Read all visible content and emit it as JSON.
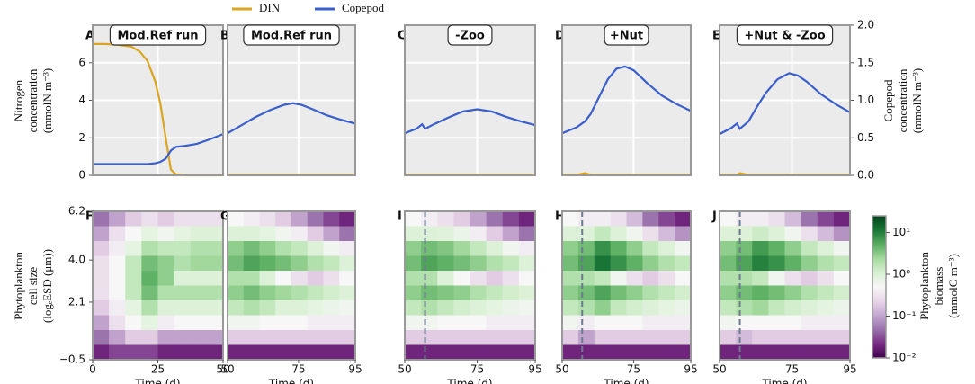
{
  "legend_labels": null,
  "labels": {
    "left_top": [
      "Nitrogen",
      "concentration",
      "(mmolN m⁻³)"
    ],
    "right_top": [
      "Copepod",
      "concentration",
      "(mmolN m⁻³)"
    ],
    "left_bottom": [
      "Phytoplankton",
      "cell size",
      "(logₑESD (μm))"
    ],
    "colorbar": [
      "Phytoplankton",
      "biomass",
      "(mmolC m⁻³)"
    ]
  },
  "colorbar": {
    "zlim": [
      0.01,
      25
    ],
    "log": true,
    "zticks": [
      {
        "value": 0.01,
        "label": "10⁻²"
      },
      {
        "value": 0.1,
        "label": "10⁻¹"
      },
      {
        "value": 1,
        "label": "10⁰"
      },
      {
        "value": 10,
        "label": "10¹"
      }
    ],
    "colormap": [
      "#40004b",
      "#762a83",
      "#9970ab",
      "#c2a5cf",
      "#e7d4e8",
      "#f7f7f7",
      "#d9f0d3",
      "#a6dba0",
      "#5aae61",
      "#1b7837",
      "#00441b"
    ]
  },
  "chart_data": [
    {
      "type": "line",
      "letter": "A",
      "title": "Mod.Ref run",
      "xlim": [
        0,
        50
      ],
      "ylim": [
        0,
        8
      ],
      "y2lim": [
        0,
        2
      ],
      "yticks": [
        0,
        2,
        4,
        6
      ],
      "grid": true,
      "x": [
        0,
        5,
        10,
        15,
        18,
        21,
        24,
        26,
        28,
        30,
        32,
        35,
        40,
        45,
        50
      ],
      "series": [
        {
          "name": "DIN",
          "color": "#daa520",
          "values": [
            7,
            7,
            6.95,
            6.85,
            6.6,
            6.1,
            5,
            3.8,
            2,
            0.3,
            0.05,
            0,
            0,
            0,
            0
          ]
        },
        {
          "name": "Copepod",
          "color": "#3a5fcd",
          "axis": "y2",
          "values": [
            0.15,
            0.15,
            0.15,
            0.15,
            0.15,
            0.15,
            0.16,
            0.18,
            0.22,
            0.33,
            0.38,
            0.39,
            0.42,
            0.48,
            0.55
          ]
        }
      ]
    },
    {
      "type": "line",
      "letter": "B",
      "title": "Mod.Ref run",
      "xlim": [
        50,
        95
      ],
      "ylim": [
        0,
        8
      ],
      "y2lim": [
        0,
        2
      ],
      "grid": true,
      "x": [
        50,
        55,
        60,
        65,
        70,
        73,
        76,
        80,
        85,
        90,
        95
      ],
      "series": [
        {
          "name": "DIN",
          "color": "#daa520",
          "values": [
            0.02,
            0.02,
            0.02,
            0.02,
            0.02,
            0.02,
            0.02,
            0.02,
            0.02,
            0.02,
            0.02
          ]
        },
        {
          "name": "Copepod",
          "color": "#3a5fcd",
          "axis": "y2",
          "values": [
            0.56,
            0.67,
            0.78,
            0.87,
            0.94,
            0.96,
            0.94,
            0.88,
            0.8,
            0.74,
            0.69
          ]
        }
      ]
    },
    {
      "type": "line",
      "letter": "C",
      "title": "-Zoo",
      "xlim": [
        50,
        95
      ],
      "ylim": [
        0,
        8
      ],
      "y2lim": [
        0,
        2
      ],
      "grid": true,
      "x": [
        50,
        54,
        56,
        57,
        60,
        65,
        70,
        75,
        80,
        85,
        90,
        95
      ],
      "series": [
        {
          "name": "DIN",
          "color": "#daa520",
          "values": [
            0.02,
            0.02,
            0.02,
            0.02,
            0.02,
            0.02,
            0.02,
            0.02,
            0.02,
            0.02,
            0.02,
            0.02
          ]
        },
        {
          "name": "Copepod",
          "color": "#3a5fcd",
          "axis": "y2",
          "values": [
            0.56,
            0.62,
            0.68,
            0.62,
            0.68,
            0.77,
            0.85,
            0.88,
            0.85,
            0.78,
            0.72,
            0.67
          ]
        }
      ]
    },
    {
      "type": "line",
      "letter": "D",
      "title": "+Nut",
      "xlim": [
        50,
        95
      ],
      "ylim": [
        0,
        8
      ],
      "y2lim": [
        0,
        2
      ],
      "grid": true,
      "x": [
        50,
        55,
        58,
        60,
        63,
        66,
        69,
        72,
        75,
        80,
        85,
        90,
        95
      ],
      "series": [
        {
          "name": "DIN",
          "color": "#daa520",
          "values": [
            0.02,
            0.02,
            0.12,
            0.02,
            0.02,
            0.02,
            0.02,
            0.02,
            0.02,
            0.02,
            0.02,
            0.02,
            0.02
          ]
        },
        {
          "name": "Copepod",
          "color": "#3a5fcd",
          "axis": "y2",
          "values": [
            0.56,
            0.64,
            0.72,
            0.82,
            1.05,
            1.28,
            1.42,
            1.45,
            1.4,
            1.22,
            1.06,
            0.95,
            0.86
          ]
        }
      ]
    },
    {
      "type": "line",
      "letter": "E",
      "title": "+Nut & -Zoo",
      "xlim": [
        50,
        95
      ],
      "ylim": [
        0,
        8
      ],
      "y2lim": [
        0,
        2
      ],
      "grid": true,
      "y2ticks": [
        {
          "value": 0,
          "label": "0.0"
        },
        0.5,
        {
          "value": 1,
          "label": "1.0"
        },
        1.5,
        {
          "value": 2,
          "label": "2.0"
        }
      ],
      "x": [
        50,
        54,
        56,
        57,
        60,
        63,
        66,
        70,
        74,
        77,
        80,
        85,
        90,
        95
      ],
      "series": [
        {
          "name": "DIN",
          "color": "#daa520",
          "values": [
            0.02,
            0.02,
            0.02,
            0.12,
            0.02,
            0.02,
            0.02,
            0.02,
            0.02,
            0.02,
            0.02,
            0.02,
            0.02,
            0.02
          ]
        },
        {
          "name": "Copepod",
          "color": "#3a5fcd",
          "axis": "y2",
          "values": [
            0.55,
            0.63,
            0.69,
            0.62,
            0.72,
            0.92,
            1.1,
            1.28,
            1.36,
            1.33,
            1.25,
            1.08,
            0.95,
            0.84
          ]
        }
      ]
    },
    {
      "type": "heatmap",
      "letter": "F",
      "xlabel": "Time (d)",
      "xlim": [
        0,
        50
      ],
      "ylim": [
        -0.5,
        6.2
      ],
      "xticks": [
        0,
        25,
        50
      ],
      "yticks": [
        {
          "value": -0.5,
          "label": "−0.5"
        },
        2.1,
        {
          "value": 4,
          "label": "4.0"
        },
        6.2
      ],
      "values": [
        [
          0.05,
          0.1,
          0.2,
          0.3,
          0.2,
          0.3,
          0.3,
          0.3
        ],
        [
          0.1,
          0.3,
          0.5,
          0.8,
          0.6,
          0.8,
          1,
          1
        ],
        [
          0.2,
          0.4,
          0.8,
          2,
          1.5,
          1.5,
          2,
          2
        ],
        [
          0.3,
          0.5,
          1.5,
          4,
          3,
          2,
          2.5,
          2.5
        ],
        [
          0.3,
          0.5,
          1.5,
          5,
          3,
          1,
          1,
          1
        ],
        [
          0.3,
          0.5,
          1.5,
          4,
          2,
          2,
          2,
          2
        ],
        [
          0.2,
          0.4,
          0.8,
          2,
          1,
          1,
          1,
          1
        ],
        [
          0.1,
          0.3,
          0.5,
          0.8,
          0.4,
          0.5,
          0.5,
          0.5
        ],
        [
          0.05,
          0.1,
          0.2,
          0.2,
          0.1,
          0.1,
          0.1,
          0.1
        ],
        [
          0.02,
          0.03,
          0.03,
          0.03,
          0.02,
          0.02,
          0.02,
          0.02
        ]
      ]
    },
    {
      "type": "heatmap",
      "letter": "G",
      "xlabel": "Time (d)",
      "xlim": [
        50,
        95
      ],
      "ylim": [
        -0.5,
        6.2
      ],
      "xticks": [
        50,
        75,
        95
      ],
      "values": [
        [
          0.5,
          0.4,
          0.3,
          0.2,
          0.1,
          0.05,
          0.03,
          0.02
        ],
        [
          1,
          1,
          0.8,
          0.6,
          0.4,
          0.2,
          0.1,
          0.05
        ],
        [
          3,
          4,
          3,
          2,
          1.5,
          1,
          0.6,
          0.4
        ],
        [
          4,
          6,
          5,
          4,
          3,
          2,
          1.5,
          1
        ],
        [
          2,
          2,
          1,
          0.5,
          0.3,
          0.2,
          0.3,
          0.5
        ],
        [
          3,
          4,
          3,
          2.5,
          2,
          1.5,
          1.2,
          1
        ],
        [
          1.5,
          2,
          1.5,
          1,
          1,
          0.8,
          0.7,
          0.6
        ],
        [
          0.6,
          0.6,
          0.5,
          0.5,
          0.5,
          0.4,
          0.4,
          0.4
        ],
        [
          0.2,
          0.2,
          0.2,
          0.2,
          0.2,
          0.2,
          0.2,
          0.2
        ],
        [
          0.02,
          0.02,
          0.02,
          0.02,
          0.02,
          0.02,
          0.02,
          0.02
        ]
      ]
    },
    {
      "type": "heatmap",
      "letter": "I",
      "xlabel": "Time (d)",
      "xlim": [
        50,
        95
      ],
      "ylim": [
        -0.5,
        6.2
      ],
      "xticks": [
        50,
        75,
        95
      ],
      "event_x": 57,
      "values": [
        [
          0.5,
          0.4,
          0.3,
          0.2,
          0.1,
          0.05,
          0.03,
          0.02
        ],
        [
          1,
          1,
          0.9,
          0.7,
          0.4,
          0.2,
          0.1,
          0.05
        ],
        [
          3,
          4,
          3.5,
          2.5,
          1.5,
          1,
          0.6,
          0.4
        ],
        [
          4,
          6,
          5,
          4,
          3,
          2,
          1.5,
          1
        ],
        [
          2,
          2,
          1,
          0.5,
          0.3,
          0.2,
          0.3,
          0.5
        ],
        [
          3,
          4,
          3.5,
          3,
          2,
          1.5,
          1.2,
          1
        ],
        [
          1.5,
          2,
          1.5,
          1.2,
          1,
          0.8,
          0.7,
          0.6
        ],
        [
          0.6,
          0.6,
          0.5,
          0.5,
          0.5,
          0.4,
          0.4,
          0.4
        ],
        [
          0.2,
          0.2,
          0.2,
          0.2,
          0.2,
          0.2,
          0.2,
          0.2
        ],
        [
          0.02,
          0.02,
          0.02,
          0.02,
          0.02,
          0.02,
          0.02,
          0.02
        ]
      ]
    },
    {
      "type": "heatmap",
      "letter": "H",
      "xlabel": "Time (d)",
      "xlim": [
        50,
        95
      ],
      "ylim": [
        -0.5,
        6.2
      ],
      "xticks": [
        50,
        75,
        95
      ],
      "event_x": 57,
      "values": [
        [
          0.5,
          0.4,
          0.4,
          0.3,
          0.15,
          0.05,
          0.03,
          0.02
        ],
        [
          1,
          1,
          1.5,
          1,
          0.6,
          0.3,
          0.15,
          0.08
        ],
        [
          3,
          4,
          8,
          5,
          3,
          1.5,
          1,
          0.6
        ],
        [
          4,
          6,
          12,
          8,
          5,
          3,
          2,
          1.5
        ],
        [
          2,
          2,
          1.5,
          0.6,
          0.3,
          0.2,
          0.3,
          0.5
        ],
        [
          3,
          4,
          6,
          4,
          3,
          2,
          1.5,
          1.2
        ],
        [
          1.5,
          2,
          3,
          1.5,
          1.2,
          1,
          0.8,
          0.7
        ],
        [
          0.6,
          0.4,
          0.5,
          0.5,
          0.5,
          0.4,
          0.4,
          0.4
        ],
        [
          0.2,
          0.1,
          0.2,
          0.2,
          0.2,
          0.2,
          0.2,
          0.2
        ],
        [
          0.02,
          0.02,
          0.02,
          0.02,
          0.02,
          0.02,
          0.02,
          0.02
        ]
      ]
    },
    {
      "type": "heatmap",
      "letter": "J",
      "xlabel": "Time (d)",
      "xlim": [
        50,
        95
      ],
      "ylim": [
        -0.5,
        6.2
      ],
      "xticks": [
        50,
        75,
        95
      ],
      "event_x": 57,
      "values": [
        [
          0.5,
          0.4,
          0.4,
          0.3,
          0.15,
          0.05,
          0.03,
          0.02
        ],
        [
          1,
          1,
          1.3,
          1,
          0.6,
          0.3,
          0.15,
          0.08
        ],
        [
          3,
          4,
          7,
          5,
          3,
          1.5,
          1,
          0.6
        ],
        [
          4,
          6,
          10,
          8,
          5,
          3,
          2,
          1.5
        ],
        [
          2,
          2,
          1.5,
          0.6,
          0.3,
          0.2,
          0.3,
          0.5
        ],
        [
          3,
          4,
          5,
          4,
          3,
          2,
          1.5,
          1.2
        ],
        [
          1.5,
          2,
          2.5,
          1.5,
          1.2,
          1,
          0.8,
          0.7
        ],
        [
          0.6,
          0.5,
          0.5,
          0.5,
          0.5,
          0.4,
          0.4,
          0.4
        ],
        [
          0.2,
          0.15,
          0.2,
          0.2,
          0.2,
          0.2,
          0.2,
          0.2
        ],
        [
          0.02,
          0.02,
          0.02,
          0.02,
          0.02,
          0.02,
          0.02,
          0.02
        ]
      ]
    }
  ]
}
